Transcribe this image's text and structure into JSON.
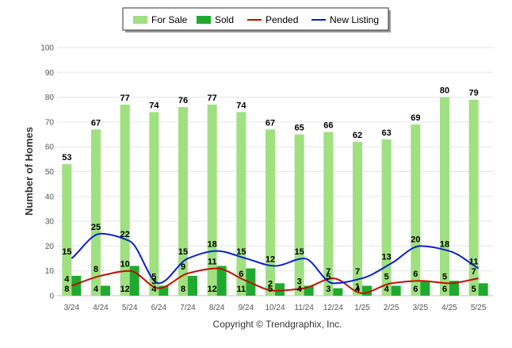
{
  "chart_data": {
    "type": "bar",
    "title": "",
    "xlabel": "",
    "ylabel": "Number of Homes",
    "ylim": [
      0,
      100
    ],
    "yticks": [
      0,
      10,
      20,
      30,
      40,
      50,
      60,
      70,
      80,
      90,
      100
    ],
    "categories": [
      "3/24",
      "4/24",
      "5/24",
      "6/24",
      "7/24",
      "8/24",
      "9/24",
      "10/24",
      "11/24",
      "12/24",
      "1/25",
      "2/25",
      "3/25",
      "4/25",
      "5/25"
    ],
    "bar_series": [
      {
        "name": "For Sale",
        "color": "#9fe080",
        "values": [
          53,
          67,
          77,
          74,
          76,
          77,
          74,
          67,
          65,
          66,
          62,
          63,
          69,
          80,
          79
        ]
      },
      {
        "name": "Sold",
        "color": "#1faa2f",
        "values": [
          8,
          4,
          12,
          4,
          8,
          12,
          11,
          5,
          4,
          3,
          4,
          4,
          6,
          6,
          5
        ]
      }
    ],
    "line_series": [
      {
        "name": "Pended",
        "color": "#bb1100",
        "values": [
          4,
          8,
          10,
          3,
          9,
          11,
          6,
          2,
          3,
          7,
          1,
          5,
          6,
          5,
          7
        ]
      },
      {
        "name": "New Listing",
        "color": "#0a1fd0",
        "values": [
          15,
          25,
          22,
          5,
          15,
          18,
          15,
          12,
          15,
          5,
          7,
          13,
          20,
          18,
          11
        ]
      }
    ],
    "legend": {
      "position": "top-center",
      "items": [
        "For Sale",
        "Sold",
        "Pended",
        "New Listing"
      ]
    },
    "grid": true,
    "credit": "Copyright © Trendgraphix, Inc."
  }
}
